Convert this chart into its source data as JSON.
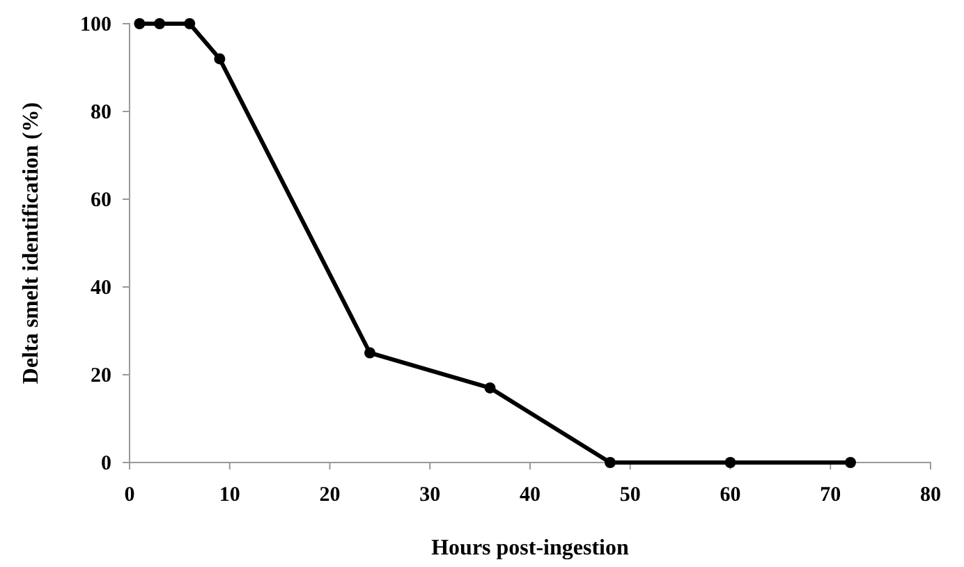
{
  "chart_data": {
    "type": "line",
    "xlabel": "Hours post-ingestion",
    "ylabel": "Delta smelt identification (%)",
    "x": [
      1,
      3,
      6,
      9,
      24,
      36,
      48,
      60,
      72
    ],
    "series": [
      {
        "color": "#000000",
        "values": [
          100,
          100,
          100,
          92,
          25,
          17,
          0,
          0,
          0
        ]
      }
    ],
    "xlim": [
      0,
      80
    ],
    "xticks": [
      0,
      10,
      20,
      30,
      40,
      50,
      60,
      70,
      80
    ],
    "ylim": [
      0,
      100
    ],
    "yticks": [
      0,
      20,
      40,
      60,
      80,
      100
    ],
    "marker": "circle",
    "line_style": "solid",
    "grid": false
  }
}
